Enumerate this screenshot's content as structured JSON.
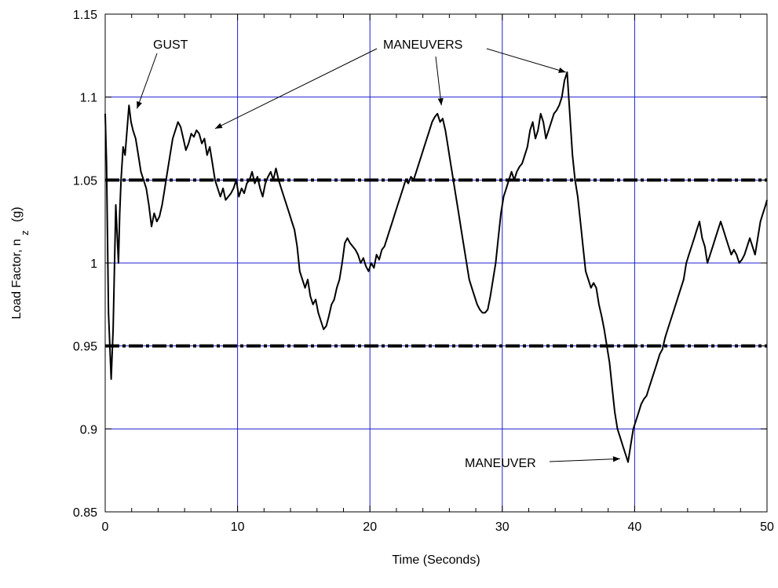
{
  "chart_data": {
    "type": "line",
    "title": "",
    "xlabel": "Time (Seconds)",
    "ylabel": {
      "main": "Load Factor, n",
      "subscript": "z",
      "unit": "(g)"
    },
    "xlim": [
      0,
      50
    ],
    "ylim": [
      0.85,
      1.15
    ],
    "xticks": [
      0,
      10,
      20,
      30,
      40,
      50
    ],
    "xtick_labels": [
      "0",
      "10",
      "20",
      "30",
      "40",
      "50"
    ],
    "yticks": [
      0.85,
      0.9,
      0.95,
      1.0,
      1.05,
      1.1,
      1.15
    ],
    "ytick_labels": [
      "0.85",
      "0.9",
      "0.95",
      "1",
      "1.05",
      "1.1",
      "1.15"
    ],
    "grid": true,
    "colors": {
      "grid": "#1f1fd0",
      "series": "#000000",
      "threshold": "#000000"
    },
    "thresholds": [
      1.05,
      0.95
    ],
    "series": [
      {
        "x": [
          0,
          0.1,
          0.25,
          0.45,
          0.6,
          0.8,
          1.0,
          1.1,
          1.2,
          1.35,
          1.5,
          1.65,
          1.8,
          1.95,
          2.1,
          2.3,
          2.5,
          2.7,
          2.9,
          3.1,
          3.3,
          3.5,
          3.7,
          3.9,
          4.1,
          4.3,
          4.5,
          4.7,
          4.9,
          5.1,
          5.3,
          5.5,
          5.7,
          5.9,
          6.1,
          6.3,
          6.5,
          6.7,
          6.9,
          7.1,
          7.3,
          7.5,
          7.7,
          7.9,
          8.1,
          8.3,
          8.5,
          8.7,
          8.9,
          9.1,
          9.3,
          9.5,
          9.7,
          9.9,
          10.1,
          10.3,
          10.5,
          10.7,
          10.9,
          11.1,
          11.3,
          11.5,
          11.7,
          11.9,
          12.1,
          12.3,
          12.5,
          12.7,
          12.9,
          13.1,
          13.3,
          13.5,
          13.7,
          13.9,
          14.1,
          14.3,
          14.5,
          14.7,
          14.9,
          15.1,
          15.3,
          15.5,
          15.7,
          15.9,
          16.1,
          16.3,
          16.5,
          16.7,
          16.9,
          17.1,
          17.3,
          17.5,
          17.7,
          17.9,
          18.1,
          18.3,
          18.5,
          18.7,
          18.9,
          19.1,
          19.3,
          19.5,
          19.7,
          19.9,
          20.1,
          20.3,
          20.5,
          20.7,
          20.9,
          21.1,
          21.3,
          21.5,
          21.7,
          21.9,
          22.1,
          22.3,
          22.5,
          22.7,
          22.9,
          23.1,
          23.3,
          23.5,
          23.7,
          23.9,
          24.1,
          24.3,
          24.5,
          24.7,
          24.9,
          25.1,
          25.3,
          25.5,
          25.7,
          25.9,
          26.1,
          26.3,
          26.5,
          26.7,
          26.9,
          27.1,
          27.3,
          27.5,
          27.7,
          27.9,
          28.1,
          28.3,
          28.5,
          28.7,
          28.9,
          29.1,
          29.3,
          29.5,
          29.7,
          29.9,
          30.1,
          30.3,
          30.5,
          30.7,
          30.9,
          31.1,
          31.3,
          31.5,
          31.7,
          31.9,
          32.1,
          32.3,
          32.5,
          32.7,
          32.9,
          33.1,
          33.3,
          33.5,
          33.7,
          33.9,
          34.1,
          34.3,
          34.5,
          34.7,
          34.9,
          35.1,
          35.3,
          35.5,
          35.7,
          35.9,
          36.1,
          36.3,
          36.5,
          36.7,
          36.9,
          37.1,
          37.3,
          37.5,
          37.7,
          37.9,
          38.1,
          38.3,
          38.5,
          38.7,
          38.9,
          39.1,
          39.3,
          39.5,
          39.7,
          39.9,
          40.1,
          40.3,
          40.5,
          40.7,
          40.9,
          41.1,
          41.3,
          41.5,
          41.7,
          41.9,
          42.1,
          42.3,
          42.5,
          42.7,
          42.9,
          43.1,
          43.3,
          43.5,
          43.7,
          43.9,
          44.1,
          44.3,
          44.5,
          44.7,
          44.9,
          45.1,
          45.3,
          45.5,
          45.7,
          45.9,
          46.1,
          46.3,
          46.5,
          46.7,
          46.9,
          47.1,
          47.3,
          47.5,
          47.7,
          47.9,
          48.1,
          48.3,
          48.5,
          48.7,
          48.9,
          49.1,
          49.3,
          49.5,
          49.7,
          49.9,
          50.0
        ],
        "y": [
          1.09,
          1.06,
          0.97,
          0.93,
          0.96,
          1.035,
          1.0,
          1.03,
          1.05,
          1.07,
          1.065,
          1.08,
          1.095,
          1.085,
          1.08,
          1.075,
          1.065,
          1.055,
          1.05,
          1.045,
          1.035,
          1.022,
          1.03,
          1.025,
          1.028,
          1.035,
          1.045,
          1.055,
          1.065,
          1.075,
          1.08,
          1.085,
          1.082,
          1.075,
          1.068,
          1.072,
          1.078,
          1.076,
          1.08,
          1.078,
          1.072,
          1.075,
          1.065,
          1.07,
          1.06,
          1.05,
          1.045,
          1.04,
          1.045,
          1.038,
          1.04,
          1.042,
          1.045,
          1.05,
          1.04,
          1.045,
          1.042,
          1.048,
          1.05,
          1.055,
          1.048,
          1.052,
          1.045,
          1.04,
          1.048,
          1.052,
          1.055,
          1.05,
          1.057,
          1.05,
          1.045,
          1.04,
          1.035,
          1.03,
          1.025,
          1.02,
          1.01,
          0.995,
          0.99,
          0.985,
          0.99,
          0.98,
          0.975,
          0.978,
          0.97,
          0.965,
          0.96,
          0.962,
          0.968,
          0.975,
          0.978,
          0.985,
          0.99,
          1.0,
          1.012,
          1.015,
          1.012,
          1.01,
          1.008,
          1.005,
          1.0,
          1.003,
          0.998,
          0.995,
          1.0,
          0.997,
          1.005,
          1.002,
          1.008,
          1.01,
          1.015,
          1.02,
          1.025,
          1.03,
          1.035,
          1.04,
          1.045,
          1.05,
          1.048,
          1.052,
          1.05,
          1.055,
          1.06,
          1.065,
          1.07,
          1.075,
          1.08,
          1.085,
          1.088,
          1.09,
          1.085,
          1.087,
          1.08,
          1.07,
          1.06,
          1.05,
          1.04,
          1.03,
          1.02,
          1.01,
          1.0,
          0.99,
          0.985,
          0.98,
          0.975,
          0.972,
          0.97,
          0.97,
          0.972,
          0.98,
          0.99,
          1.0,
          1.015,
          1.03,
          1.04,
          1.045,
          1.05,
          1.055,
          1.05,
          1.055,
          1.058,
          1.06,
          1.065,
          1.07,
          1.08,
          1.085,
          1.075,
          1.08,
          1.09,
          1.085,
          1.075,
          1.08,
          1.085,
          1.09,
          1.092,
          1.095,
          1.1,
          1.11,
          1.115,
          1.09,
          1.065,
          1.05,
          1.04,
          1.025,
          1.01,
          0.995,
          0.99,
          0.985,
          0.988,
          0.985,
          0.975,
          0.968,
          0.96,
          0.95,
          0.94,
          0.925,
          0.91,
          0.9,
          0.895,
          0.89,
          0.885,
          0.88,
          0.89,
          0.9,
          0.905,
          0.91,
          0.915,
          0.918,
          0.92,
          0.925,
          0.93,
          0.935,
          0.94,
          0.945,
          0.948,
          0.955,
          0.96,
          0.965,
          0.97,
          0.975,
          0.98,
          0.985,
          0.99,
          1.0,
          1.005,
          1.01,
          1.015,
          1.02,
          1.025,
          1.015,
          1.01,
          1.0,
          1.005,
          1.01,
          1.015,
          1.02,
          1.025,
          1.02,
          1.015,
          1.01,
          1.005,
          1.008,
          1.005,
          1.0,
          1.002,
          1.005,
          1.01,
          1.015,
          1.01,
          1.005,
          1.015,
          1.025,
          1.03,
          1.035,
          1.038
        ]
      }
    ],
    "annotations": [
      {
        "text": "GUST",
        "target": [
          2.4,
          1.093
        ]
      },
      {
        "text": "MANEUVERS",
        "target": [
          8.3,
          1.081
        ]
      },
      {
        "text": "MANEUVERS",
        "target": [
          25.4,
          1.095
        ]
      },
      {
        "text": "MANEUVERS",
        "target": [
          34.8,
          1.115
        ]
      },
      {
        "text": "MANEUVER",
        "target": [
          38.9,
          0.882
        ]
      }
    ]
  }
}
